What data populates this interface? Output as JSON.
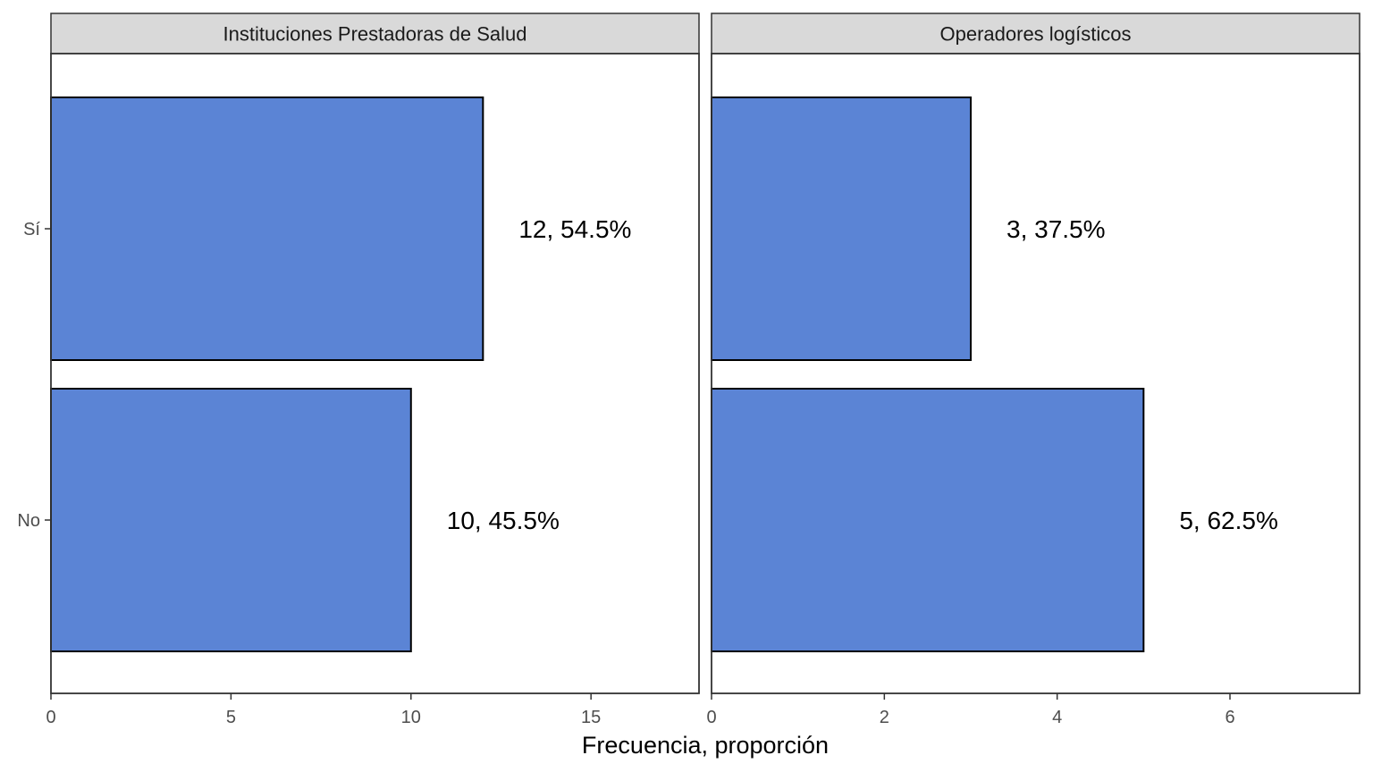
{
  "chart_data": {
    "type": "bar",
    "orientation": "horizontal",
    "xlabel": "Frecuencia, proporción",
    "ylabel": "",
    "categories": [
      "Sí",
      "No"
    ],
    "bar_color": "#5B84D5",
    "panels": [
      {
        "title": "Instituciones Prestadoras de Salud",
        "values": [
          12,
          10
        ],
        "labels": [
          "12, 54.5%",
          "10, 45.5%"
        ],
        "xlim": [
          0,
          18
        ],
        "xticks": [
          0,
          5,
          10,
          15
        ]
      },
      {
        "title": "Operadores logísticos",
        "values": [
          3,
          5
        ],
        "labels": [
          "3, 37.5%",
          "5, 62.5%"
        ],
        "xlim": [
          0,
          7.5
        ],
        "xticks": [
          0,
          2,
          4,
          6
        ]
      }
    ]
  }
}
